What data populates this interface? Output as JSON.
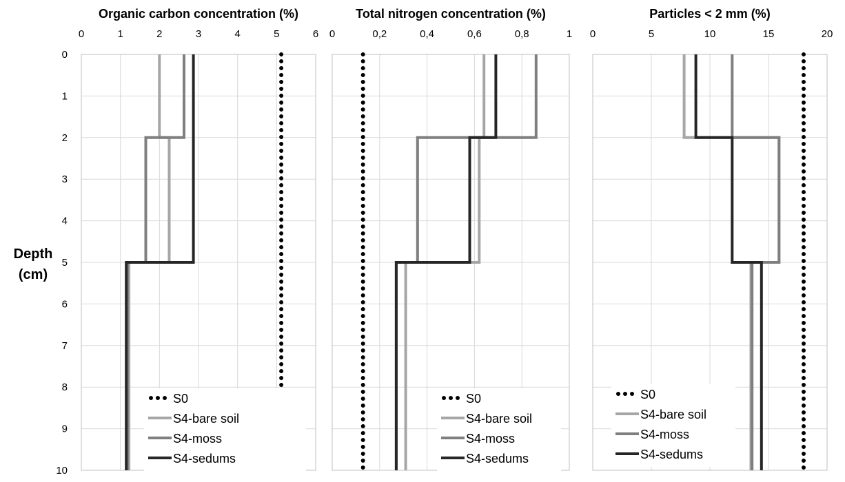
{
  "figure": {
    "ylabel_line1": "Depth",
    "ylabel_line2": "(cm)"
  },
  "chart_data": [
    {
      "type": "line",
      "title": "Organic carbon concentration (%)",
      "xlabel": "Organic carbon concentration (%)",
      "ylabel": "Depth (cm)",
      "xlim": [
        0,
        6
      ],
      "ylim": [
        0,
        10
      ],
      "y_inverted": true,
      "x_axis_position": "top",
      "x_ticks": [
        "0",
        "1",
        "2",
        "3",
        "4",
        "5",
        "6"
      ],
      "y_ticks": [
        "0",
        "1",
        "2",
        "3",
        "4",
        "5",
        "6",
        "7",
        "8",
        "9",
        "10"
      ],
      "grid": true,
      "legend_position": "bottom",
      "series": [
        {
          "name": "S0",
          "style": "dotted",
          "color": "#000000",
          "points": [
            [
              5.12,
              0
            ],
            [
              5.12,
              10
            ]
          ]
        },
        {
          "name": "S4-bare soil",
          "style": "solid",
          "color": "#a6a6a6",
          "points": [
            [
              2.0,
              0
            ],
            [
              2.0,
              2
            ],
            [
              2.25,
              2
            ],
            [
              2.25,
              5
            ],
            [
              1.22,
              5
            ],
            [
              1.22,
              10
            ]
          ]
        },
        {
          "name": "S4-moss",
          "style": "solid",
          "color": "#7f7f7f",
          "points": [
            [
              2.63,
              0
            ],
            [
              2.63,
              2
            ],
            [
              1.65,
              2
            ],
            [
              1.65,
              5
            ],
            [
              1.18,
              5
            ],
            [
              1.18,
              10
            ]
          ]
        },
        {
          "name": "S4-sedums",
          "style": "solid",
          "color": "#262626",
          "points": [
            [
              2.87,
              0
            ],
            [
              2.87,
              2
            ],
            [
              2.87,
              5
            ],
            [
              1.15,
              5
            ],
            [
              1.15,
              10
            ]
          ]
        }
      ]
    },
    {
      "type": "line",
      "title": "Total nitrogen concentration (%)",
      "xlabel": "Total nitrogen concentration (%)",
      "ylabel": "Depth (cm)",
      "xlim": [
        0,
        1
      ],
      "ylim": [
        0,
        10
      ],
      "y_inverted": true,
      "x_axis_position": "top",
      "x_ticks": [
        "0",
        "0,2",
        "0,4",
        "0,6",
        "0,8",
        "1"
      ],
      "grid": true,
      "legend_position": "bottom",
      "series": [
        {
          "name": "S0",
          "style": "dotted",
          "color": "#000000",
          "points": [
            [
              0.13,
              0
            ],
            [
              0.13,
              10
            ]
          ]
        },
        {
          "name": "S4-bare soil",
          "style": "solid",
          "color": "#a6a6a6",
          "points": [
            [
              0.64,
              0
            ],
            [
              0.64,
              2
            ],
            [
              0.62,
              2
            ],
            [
              0.62,
              5
            ],
            [
              0.31,
              5
            ],
            [
              0.31,
              10
            ]
          ]
        },
        {
          "name": "S4-moss",
          "style": "solid",
          "color": "#7f7f7f",
          "points": [
            [
              0.86,
              0
            ],
            [
              0.86,
              2
            ],
            [
              0.36,
              2
            ],
            [
              0.36,
              5
            ],
            [
              0.27,
              5
            ],
            [
              0.27,
              10
            ]
          ]
        },
        {
          "name": "S4-sedums",
          "style": "solid",
          "color": "#262626",
          "points": [
            [
              0.69,
              0
            ],
            [
              0.69,
              2
            ],
            [
              0.58,
              2
            ],
            [
              0.58,
              5
            ],
            [
              0.27,
              5
            ],
            [
              0.27,
              10
            ]
          ]
        }
      ]
    },
    {
      "type": "line",
      "title": "Particles < 2 mm (%)",
      "xlabel": "Particles < 2 mm (%)",
      "ylabel": "Depth (cm)",
      "xlim": [
        0,
        20
      ],
      "ylim": [
        0,
        10
      ],
      "y_inverted": true,
      "x_axis_position": "top",
      "x_ticks": [
        "0",
        "5",
        "10",
        "15",
        "20"
      ],
      "grid": true,
      "legend_position": "bottom",
      "series": [
        {
          "name": "S0",
          "style": "dotted",
          "color": "#000000",
          "points": [
            [
              18.0,
              0
            ],
            [
              18.0,
              10
            ]
          ]
        },
        {
          "name": "S4-bare soil",
          "style": "solid",
          "color": "#a6a6a6",
          "points": [
            [
              7.8,
              0
            ],
            [
              7.8,
              2
            ],
            [
              15.9,
              2
            ],
            [
              15.9,
              5
            ],
            [
              13.5,
              5
            ],
            [
              13.5,
              10
            ]
          ]
        },
        {
          "name": "S4-moss",
          "style": "solid",
          "color": "#7f7f7f",
          "points": [
            [
              11.9,
              0
            ],
            [
              11.9,
              2
            ],
            [
              15.9,
              2
            ],
            [
              15.9,
              5
            ],
            [
              13.6,
              5
            ],
            [
              13.6,
              10
            ]
          ]
        },
        {
          "name": "S4-sedums",
          "style": "solid",
          "color": "#262626",
          "points": [
            [
              8.8,
              0
            ],
            [
              8.8,
              2
            ],
            [
              11.9,
              2
            ],
            [
              11.9,
              5
            ],
            [
              14.4,
              5
            ],
            [
              14.4,
              10
            ]
          ]
        }
      ]
    }
  ]
}
